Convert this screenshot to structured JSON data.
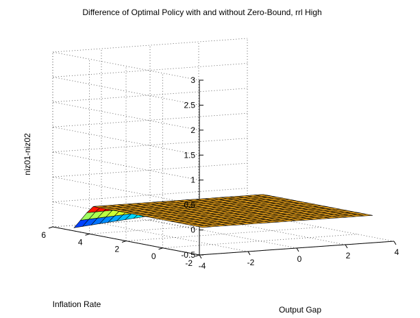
{
  "chart_data": {
    "type": "surface3d",
    "title": "Difference of Optimal Policy with and without Zero-Bound, rrl High",
    "xlabel": "Output Gap",
    "ylabel": "Inflation Rate",
    "zlabel": "niz01-niz02",
    "xlim": [
      -4,
      4
    ],
    "ylim": [
      -2,
      6
    ],
    "zlim": [
      -0.5,
      3
    ],
    "xticks": [
      "-4",
      "-2",
      "0",
      "2",
      "4"
    ],
    "yticks": [
      "-2",
      "0",
      "2",
      "4",
      "6"
    ],
    "zticks": [
      "-0.5",
      "0",
      "0.5",
      "1",
      "1.5",
      "2",
      "2.5",
      "3"
    ],
    "grid": true,
    "surface": {
      "x_range": [
        -3.5,
        3.5
      ],
      "y_range": [
        -1.5,
        5.5
      ],
      "n": 21,
      "colormap": "jet",
      "color_limits": [
        -0.5,
        0
      ],
      "base_value": 0,
      "dip_value": -0.5,
      "dip_x_range": [
        -3.5,
        3.5
      ],
      "dip_y_max": 5.5,
      "dip_band_halfwidth": 1.0
    }
  }
}
